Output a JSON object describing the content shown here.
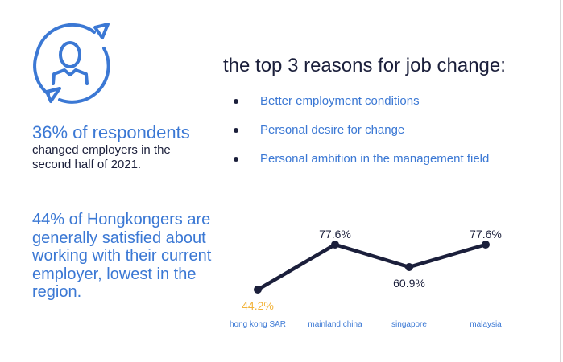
{
  "colors": {
    "accent": "#3b78d4",
    "dark": "#1b1f3b",
    "highlight": "#f2b43c"
  },
  "icon": "person-with-circular-arrows-icon",
  "stat1": {
    "headline": "36% of respondents",
    "line1": "changed employers in the",
    "line2": "second half of 2021."
  },
  "stat2": {
    "text": "44% of Hongkongers are generally satisfied about working with their current employer, lowest in the region."
  },
  "reasons": {
    "title": "the top 3 reasons for job change:",
    "items": [
      "Better employment conditions",
      "Personal desire for change",
      "Personal ambition in the management field"
    ]
  },
  "chart_data": {
    "type": "line",
    "categories": [
      "hong kong SAR",
      "mainland china",
      "singapore",
      "malaysia"
    ],
    "values": [
      44.2,
      77.6,
      60.9,
      77.6
    ],
    "data_labels": [
      "44.2%",
      "77.6%",
      "60.9%",
      "77.6%"
    ],
    "highlight_index": 0,
    "grid": false,
    "axes_visible": false
  }
}
